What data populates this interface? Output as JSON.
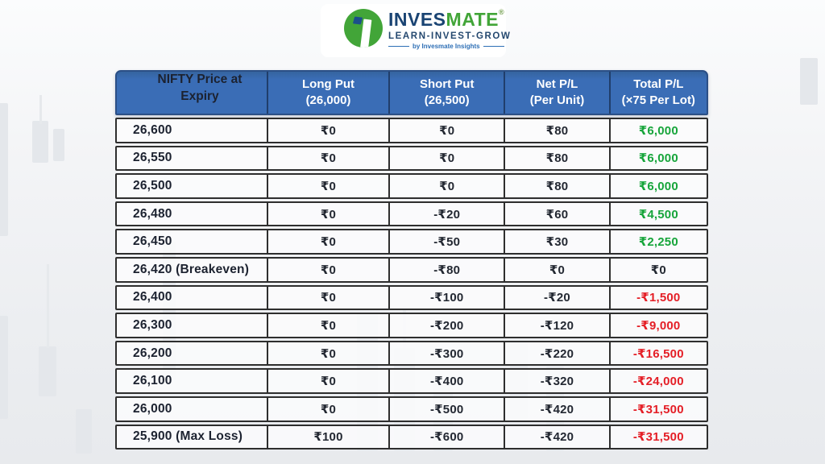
{
  "logo": {
    "brand_primary": "INVES",
    "brand_secondary": "MATE",
    "registered": "®",
    "tagline": "LEARN-INVEST-GROW",
    "subtagline": "by Invesmate Insights",
    "icon": "invesmate-pillar-circle-icon"
  },
  "colors": {
    "header_blue": "#3a6db6",
    "header_border": "#2b4f86",
    "row_border": "#2e2e2e",
    "profit_green": "#17a53b",
    "loss_red": "#e41e26",
    "brand_navy": "#1a4473",
    "brand_green": "#42a538"
  },
  "table": {
    "headers": [
      {
        "line1": "NIFTY Price at",
        "line2": "Expiry"
      },
      {
        "line1": "Long Put",
        "line2": "(26,000)"
      },
      {
        "line1": "Short Put",
        "line2": "(26,500)"
      },
      {
        "line1": "Net P/L",
        "line2": "(Per Unit)"
      },
      {
        "line1": "Total P/L",
        "line2": "(×75 Per Lot)"
      }
    ],
    "rows": [
      {
        "expiry": "26,600",
        "long_put": "₹0",
        "short_put": "₹0",
        "net_pl": "₹80",
        "total_pl": "₹6,000",
        "total_status": "profit"
      },
      {
        "expiry": "26,550",
        "long_put": "₹0",
        "short_put": "₹0",
        "net_pl": "₹80",
        "total_pl": "₹6,000",
        "total_status": "profit"
      },
      {
        "expiry": "26,500",
        "long_put": "₹0",
        "short_put": "₹0",
        "net_pl": "₹80",
        "total_pl": "₹6,000",
        "total_status": "profit"
      },
      {
        "expiry": "26,480",
        "long_put": "₹0",
        "short_put": "-₹20",
        "net_pl": "₹60",
        "total_pl": "₹4,500",
        "total_status": "profit"
      },
      {
        "expiry": "26,450",
        "long_put": "₹0",
        "short_put": "-₹50",
        "net_pl": "₹30",
        "total_pl": "₹2,250",
        "total_status": "profit"
      },
      {
        "expiry": "26,420 (Breakeven)",
        "long_put": "₹0",
        "short_put": "-₹80",
        "net_pl": "₹0",
        "total_pl": "₹0",
        "total_status": "neutral"
      },
      {
        "expiry": "26,400",
        "long_put": "₹0",
        "short_put": "-₹100",
        "net_pl": "-₹20",
        "total_pl": "-₹1,500",
        "total_status": "loss"
      },
      {
        "expiry": "26,300",
        "long_put": "₹0",
        "short_put": "-₹200",
        "net_pl": "-₹120",
        "total_pl": "-₹9,000",
        "total_status": "loss"
      },
      {
        "expiry": "26,200",
        "long_put": "₹0",
        "short_put": "-₹300",
        "net_pl": "-₹220",
        "total_pl": "-₹16,500",
        "total_status": "loss"
      },
      {
        "expiry": "26,100",
        "long_put": "₹0",
        "short_put": "-₹400",
        "net_pl": "-₹320",
        "total_pl": "-₹24,000",
        "total_status": "loss"
      },
      {
        "expiry": "26,000",
        "long_put": "₹0",
        "short_put": "-₹500",
        "net_pl": "-₹420",
        "total_pl": "-₹31,500",
        "total_status": "loss"
      },
      {
        "expiry": "25,900 (Max Loss)",
        "long_put": "₹100",
        "short_put": "-₹600",
        "net_pl": "-₹420",
        "total_pl": "-₹31,500",
        "total_status": "loss"
      }
    ]
  },
  "chart_data": {
    "type": "table",
    "columns": [
      "NIFTY Price at Expiry",
      "Long Put (26,000)",
      "Short Put (26,500)",
      "Net P/L (Per Unit)",
      "Total P/L (×75 Per Lot)"
    ],
    "currency": "INR (₹)",
    "lot_multiplier": 75,
    "rows": [
      {
        "expiry": 26600,
        "label": "",
        "long_put": 0,
        "short_put": 0,
        "net_pl": 80,
        "total_pl": 6000
      },
      {
        "expiry": 26550,
        "label": "",
        "long_put": 0,
        "short_put": 0,
        "net_pl": 80,
        "total_pl": 6000
      },
      {
        "expiry": 26500,
        "label": "",
        "long_put": 0,
        "short_put": 0,
        "net_pl": 80,
        "total_pl": 6000
      },
      {
        "expiry": 26480,
        "label": "",
        "long_put": 0,
        "short_put": -20,
        "net_pl": 60,
        "total_pl": 4500
      },
      {
        "expiry": 26450,
        "label": "",
        "long_put": 0,
        "short_put": -50,
        "net_pl": 30,
        "total_pl": 2250
      },
      {
        "expiry": 26420,
        "label": "Breakeven",
        "long_put": 0,
        "short_put": -80,
        "net_pl": 0,
        "total_pl": 0
      },
      {
        "expiry": 26400,
        "label": "",
        "long_put": 0,
        "short_put": -100,
        "net_pl": -20,
        "total_pl": -1500
      },
      {
        "expiry": 26300,
        "label": "",
        "long_put": 0,
        "short_put": -200,
        "net_pl": -120,
        "total_pl": -9000
      },
      {
        "expiry": 26200,
        "label": "",
        "long_put": 0,
        "short_put": -300,
        "net_pl": -220,
        "total_pl": -16500
      },
      {
        "expiry": 26100,
        "label": "",
        "long_put": 0,
        "short_put": -400,
        "net_pl": -320,
        "total_pl": -24000
      },
      {
        "expiry": 26000,
        "label": "",
        "long_put": 0,
        "short_put": -500,
        "net_pl": -420,
        "total_pl": -31500
      },
      {
        "expiry": 25900,
        "label": "Max Loss",
        "long_put": 100,
        "short_put": -600,
        "net_pl": -420,
        "total_pl": -31500
      }
    ]
  }
}
